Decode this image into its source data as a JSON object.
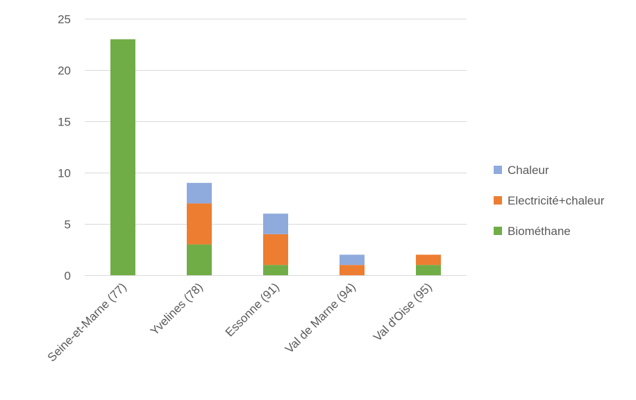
{
  "chart_data": {
    "type": "bar",
    "stacked": true,
    "categories": [
      "Seine-et-Marne (77)",
      "Yvelines (78)",
      "Essonne (91)",
      "Val de Marne (94)",
      "Val d'Oise (95)"
    ],
    "series": [
      {
        "name": "Biométhane",
        "color": "#70ad47",
        "values": [
          23,
          3,
          1,
          0,
          1
        ]
      },
      {
        "name": "Electricité+chaleur",
        "color": "#ed7d31",
        "values": [
          0,
          4,
          3,
          1,
          1
        ]
      },
      {
        "name": "Chaleur",
        "color": "#8faadc",
        "values": [
          0,
          2,
          2,
          1,
          0
        ]
      }
    ],
    "ylim": [
      0,
      25
    ],
    "yticks": [
      0,
      5,
      10,
      15,
      20,
      25
    ],
    "grid": true,
    "legend_position": "right",
    "legend_order": [
      "Chaleur",
      "Electricité+chaleur",
      "Biométhane"
    ]
  }
}
